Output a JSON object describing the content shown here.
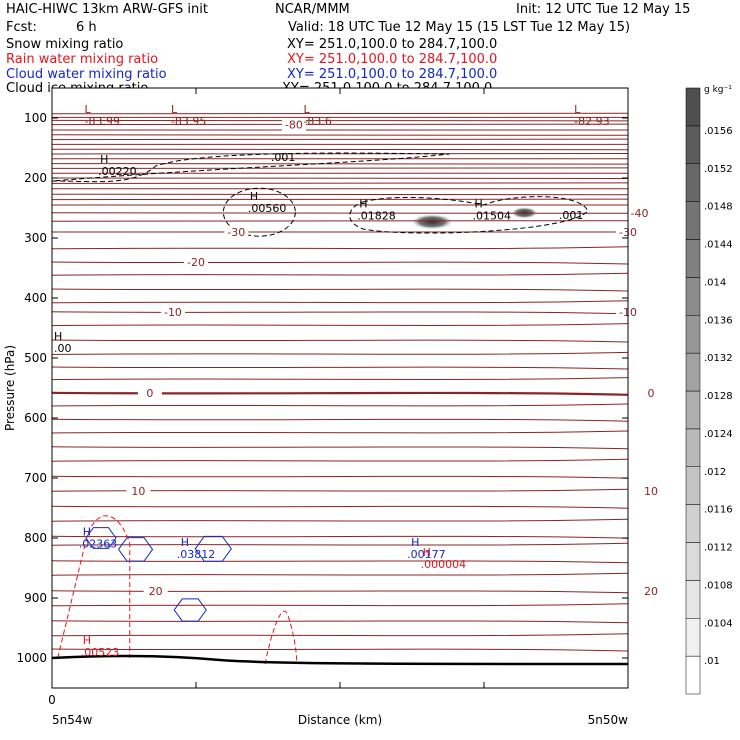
{
  "header": {
    "model": "HAIC-HIWC 13km ARW-GFS init",
    "org": "NCAR/MMM",
    "init": "Init: 12 UTC Tue 12 May 15",
    "fcst_label": "Fcst:",
    "fcst_value": "6 h",
    "valid": "Valid: 18 UTC Tue 12 May 15 (15 LST Tue 12 May 15)",
    "fields": [
      {
        "name": "Snow mixing ratio",
        "xy": "XY= 251.0,100.0 to 284.7,100.0",
        "color": "#000000"
      },
      {
        "name": "Rain water mixing ratio",
        "xy": "XY= 251.0,100.0 to 284.7,100.0",
        "color": "#e8141e"
      },
      {
        "name": "Cloud water mixing ratio",
        "xy": "XY= 251.0,100.0 to 284.7,100.0",
        "color": "#1428c8"
      },
      {
        "name": "Cloud ice mixing ratio",
        "xy": "XY= 251.0,100.0 to 284.7,100.0",
        "color": "#000000"
      }
    ]
  },
  "chart_data": {
    "type": "contour cross-section",
    "ylabel": "Pressure (hPa)",
    "xlabel": "Distance (km)",
    "x_start_label": "5n54w",
    "x_end_label": "5n50w",
    "x_zero_label": "0",
    "ylim": [
      1050,
      50
    ],
    "yticks": [
      100,
      200,
      300,
      400,
      500,
      600,
      700,
      800,
      900,
      1000
    ],
    "y_scale": "linear",
    "temperature_contours": {
      "color": "#8b2525",
      "labeled_levels": [
        {
          "value": "-80",
          "p": 111
        },
        {
          "value": "-40",
          "p": 258
        },
        {
          "value": "-30",
          "p": 290
        },
        {
          "value": "-20",
          "p": 340
        },
        {
          "value": "-10",
          "p": 423
        },
        {
          "value": "0",
          "p": 558
        },
        {
          "value": "10",
          "p": 722
        },
        {
          "value": "20",
          "p": 888
        }
      ],
      "lows": [
        {
          "value": "-83.99",
          "x": 0.06
        },
        {
          "value": "-83.95",
          "x": 0.21
        },
        {
          "value": "-83.6",
          "x": 0.44
        },
        {
          "value": "-82.93",
          "x": 0.91
        }
      ]
    },
    "snow_maxima": [
      {
        "value": ".00220",
        "x": 0.08,
        "p": 192
      },
      {
        "value": ".00560",
        "x": 0.34,
        "p": 253
      },
      {
        "value": ".01828",
        "x": 0.53,
        "p": 266
      },
      {
        "value": ".01504",
        "x": 0.73,
        "p": 266
      }
    ],
    "snow_contour_labels": [
      ".001",
      ".001"
    ],
    "cloud_water_maxima": [
      {
        "value": ".02363",
        "x": 0.05,
        "p": 809
      },
      {
        "value": ".03812",
        "x": 0.22,
        "p": 827
      },
      {
        "value": ".00177",
        "x": 0.62,
        "p": 827
      }
    ],
    "rain_maxima": [
      {
        "value": ".000004",
        "x": 0.64,
        "p": 847
      },
      {
        "value": ".00523",
        "x": 0.05,
        "p": 993
      }
    ],
    "left_edge_max": {
      "value": ".00",
      "p": 487
    },
    "colorbar": {
      "unit": "g kg⁻¹",
      "ticks": [
        ".01",
        ".0104",
        ".0108",
        ".0112",
        ".0116",
        ".012",
        ".0124",
        ".0128",
        ".0132",
        ".0136",
        ".014",
        ".0144",
        ".0148",
        ".0152",
        ".0156"
      ],
      "colors": [
        "#ffffff",
        "#f1f1f1",
        "#e6e6e6",
        "#dbdbdb",
        "#d0d0d0",
        "#c4c4c4",
        "#b9b9b9",
        "#aeaeae",
        "#a2a2a2",
        "#979797",
        "#8c8c8c",
        "#808080",
        "#747474",
        "#686868",
        "#5c5c5c",
        "#4f4f4f"
      ]
    }
  }
}
